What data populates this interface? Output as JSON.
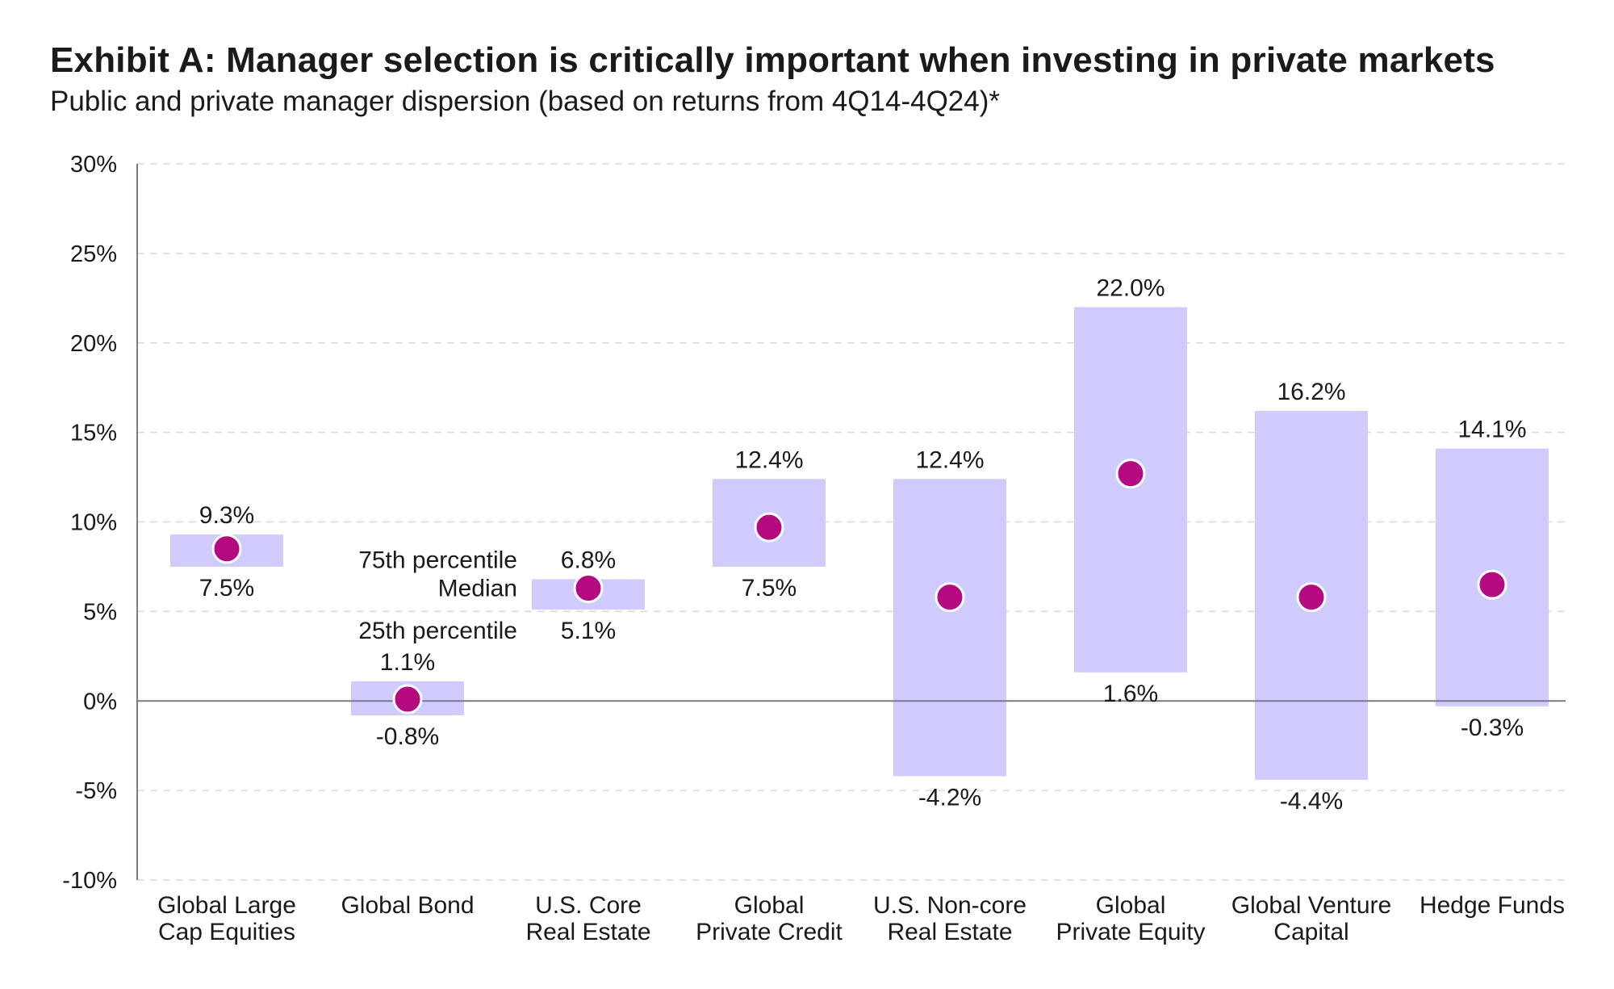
{
  "header": {
    "title": "Exhibit A: Manager selection is critically important when investing in private markets",
    "subtitle": "Public and private manager dispersion (based on returns from 4Q14-4Q24)*"
  },
  "chart_data": {
    "type": "range-bar",
    "title": "Exhibit A: Manager selection is critically important when investing in private markets",
    "subtitle": "Public and private manager dispersion (based on returns from 4Q14-4Q24)*",
    "xlabel": "",
    "ylabel": "",
    "ylim": [
      -10,
      30
    ],
    "yticks": [
      30,
      25,
      20,
      15,
      10,
      5,
      0,
      -5,
      -10
    ],
    "ytick_labels": [
      "30%",
      "25%",
      "20%",
      "15%",
      "10%",
      "5%",
      "0%",
      "-5%",
      "-10%"
    ],
    "grid": true,
    "categories": [
      [
        "Global Large",
        "Cap Equities"
      ],
      [
        "Global Bond"
      ],
      [
        "U.S. Core",
        "Real Estate"
      ],
      [
        "Global",
        "Private Credit"
      ],
      [
        "U.S. Non-core",
        "Real Estate"
      ],
      [
        "Global",
        "Private Equity"
      ],
      [
        "Global Venture",
        "Capital"
      ],
      [
        "Hedge Funds"
      ]
    ],
    "series": [
      {
        "name": "75th percentile",
        "values": [
          9.3,
          1.1,
          6.8,
          12.4,
          12.4,
          22.0,
          16.2,
          14.1
        ],
        "labels": [
          "9.3%",
          "1.1%",
          "6.8%",
          "12.4%",
          "12.4%",
          "22.0%",
          "16.2%",
          "14.1%"
        ]
      },
      {
        "name": "Median",
        "values": [
          8.5,
          0.1,
          6.3,
          9.7,
          5.8,
          12.7,
          5.8,
          6.5
        ]
      },
      {
        "name": "25th percentile",
        "values": [
          7.5,
          -0.8,
          5.1,
          7.5,
          -4.2,
          1.6,
          -4.4,
          -0.3
        ],
        "labels": [
          "7.5%",
          "-0.8%",
          "5.1%",
          "7.5%",
          "-4.2%",
          "1.6%",
          "-4.4%",
          "-0.3%"
        ]
      }
    ],
    "legend": {
      "placement": "inline, left of U.S. Core Real Estate",
      "items": [
        "75th percentile",
        "Median",
        "25th percentile"
      ]
    },
    "colors": {
      "bar": "#cfcbfe",
      "median": "#b5097f",
      "median_stroke": "#ffffff",
      "legend_median_text": "#b5097f",
      "grid": "#d9d9d9",
      "axis": "#7a7a8a",
      "text": "#1a1a1a"
    }
  }
}
